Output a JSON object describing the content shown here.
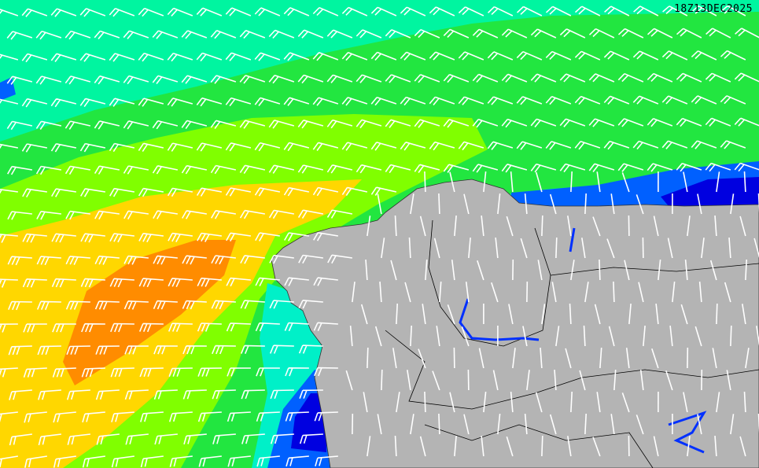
{
  "map": {
    "timestamp": "18Z13DEC2025",
    "colors": {
      "mint": "#00f5a0",
      "green": "#22e640",
      "light_green": "#80ff00",
      "yellow": "#ffd700",
      "orange": "#ff8c00",
      "cyan": "#00f0c8",
      "blue": "#0060ff",
      "dark_blue": "#0000e0",
      "land": "#b4b4b4",
      "barb": "#ffffff",
      "border": "#000000"
    }
  }
}
